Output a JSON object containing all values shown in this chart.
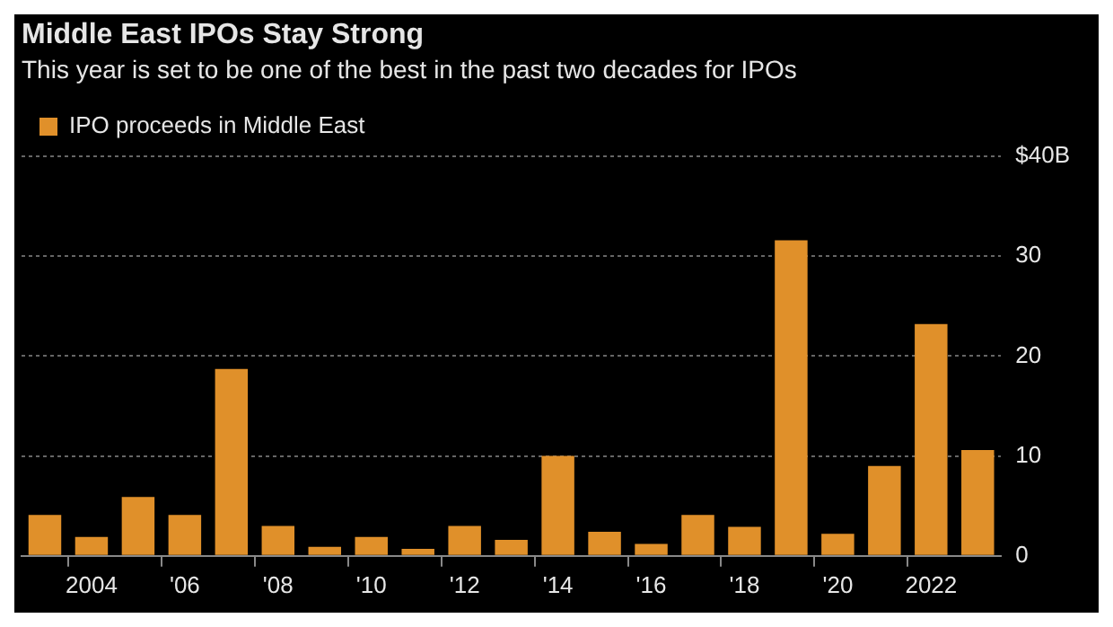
{
  "chart_data": {
    "type": "bar",
    "title": "Middle East IPOs Stay Strong",
    "subtitle": "This year is set to be one of the best in the past two decades for IPOs",
    "categories": [
      null,
      "2004",
      null,
      "'06",
      null,
      "'08",
      null,
      "'10",
      null,
      "'12",
      null,
      "'14",
      null,
      "'16",
      null,
      "'18",
      null,
      "'20",
      null,
      "2022",
      null
    ],
    "series": [
      {
        "name": "IPO proceeds in Middle East",
        "color": "#e0902a",
        "values": [
          4.1,
          1.9,
          5.9,
          4.1,
          18.7,
          3.0,
          0.9,
          1.9,
          0.7,
          3.0,
          1.6,
          10.0,
          2.4,
          1.2,
          4.1,
          2.9,
          31.6,
          2.2,
          9.0,
          23.2,
          10.6
        ]
      }
    ],
    "ylim": [
      0,
      40
    ],
    "yticks": [
      0,
      10,
      20,
      30,
      {
        "value": 40,
        "label": "$40B"
      }
    ],
    "grid": "y",
    "legend": "top left"
  }
}
